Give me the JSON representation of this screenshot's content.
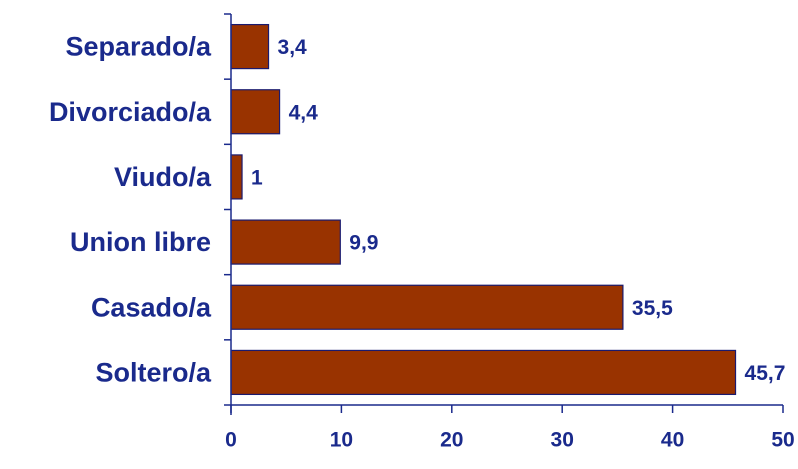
{
  "chart_data": {
    "type": "bar",
    "orientation": "horizontal",
    "categories": [
      "Separado/a",
      "Divorciado/a",
      "Viudo/a",
      "Union libre",
      "Casado/a",
      "Soltero/a"
    ],
    "values": [
      3.4,
      4.4,
      1,
      9.9,
      35.5,
      45.7
    ],
    "value_labels": [
      "3,4",
      "4,4",
      "1",
      "9,9",
      "35,5",
      "45,7"
    ],
    "xlim": [
      0,
      50
    ],
    "x_ticks": [
      0,
      10,
      20,
      30,
      40,
      50
    ],
    "x_tick_labels": [
      "0",
      "10",
      "20",
      "30",
      "40",
      "50"
    ],
    "grid": false,
    "legend": "none",
    "colors": {
      "bar_fill": "#993300",
      "bar_stroke": "#1a1a6e",
      "axis": "#1a2a8c",
      "text": "#1a2a8c"
    }
  }
}
